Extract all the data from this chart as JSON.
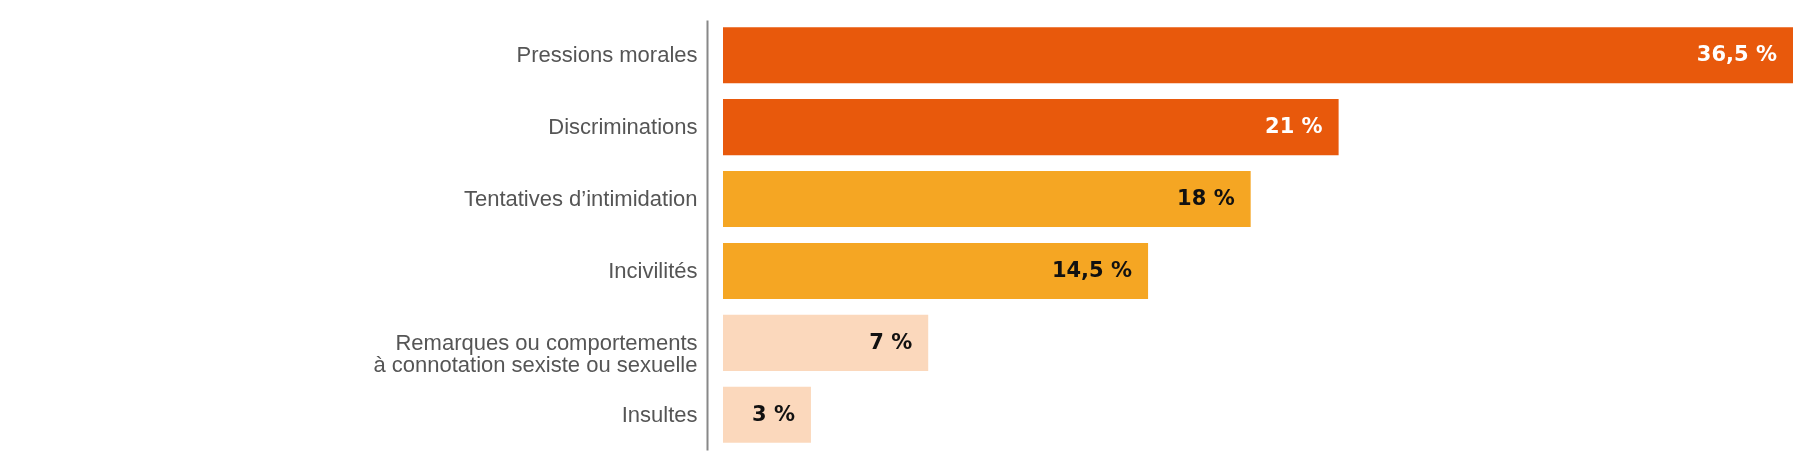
{
  "chart_data": {
    "type": "bar",
    "orientation": "horizontal",
    "categories": [
      "Pressions morales",
      "Discriminations",
      "Tentatives d’intimidation",
      "Incivilités",
      "Remarques ou comportements\nà connotation sexiste ou sexuelle",
      "Insultes"
    ],
    "values": [
      36.5,
      21,
      18,
      14.5,
      7,
      3
    ],
    "colors": [
      "#e8590c",
      "#e8590c",
      "#f5a623",
      "#f5a623",
      "#fbd8bc",
      "#fbd8bc"
    ],
    "value_labels": [
      "36,5 %",
      "21 %",
      "18 %",
      "14,5 %",
      "7 %",
      "3 %"
    ],
    "xlim": [
      0,
      36.5
    ],
    "tick_labels": "y"
  }
}
